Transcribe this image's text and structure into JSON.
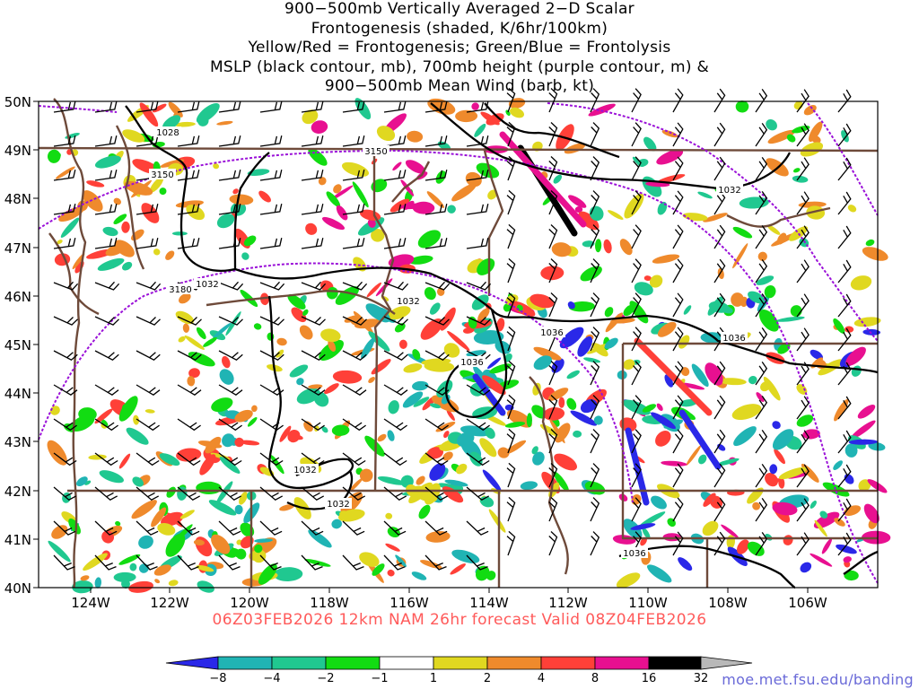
{
  "title_lines": [
    "900−500mb Vertically Averaged 2−D Scalar",
    "Frontogenesis (shaded, K/6hr/100km)",
    "Yellow/Red = Frontogenesis;  Green/Blue = Frontolysis",
    "MSLP (black contour, mb), 700mb height (purple contour, m) &",
    "900−500mb Mean Wind (barb, kt)"
  ],
  "map": {
    "lat_labels": [
      "50N",
      "49N",
      "48N",
      "47N",
      "46N",
      "45N",
      "44N",
      "43N",
      "42N",
      "41N",
      "40N"
    ],
    "lon_labels": [
      "124W",
      "122W",
      "120W",
      "118W",
      "116W",
      "114W",
      "112W",
      "110W",
      "108W",
      "106W"
    ],
    "mslp_labels": [
      "1028",
      "1032",
      "1032",
      "1032",
      "1032",
      "1032",
      "1036",
      "1036",
      "1036",
      "1036"
    ],
    "height_labels": [
      "3150",
      "3150",
      "3180"
    ],
    "colors": {
      "mslp": "#000000",
      "height": "#9a10d8",
      "borders": "#6e4a3a"
    }
  },
  "valid_line": "06Z03FEB2026 12km NAM 26hr forecast Valid 08Z04FEB2026",
  "colorbar": {
    "labels": [
      "−8",
      "−4",
      "−2",
      "−1",
      "1",
      "2",
      "4",
      "8",
      "16",
      "32"
    ],
    "colors": [
      "#2a28e8",
      "#20b4b4",
      "#20c890",
      "#12dc12",
      "#ffffff",
      "#e0d820",
      "#ef8a2c",
      "#ff4038",
      "#e81090",
      "#000000",
      "#b8b8b8"
    ]
  },
  "credit": "moe.met.fsu.edu/banding"
}
